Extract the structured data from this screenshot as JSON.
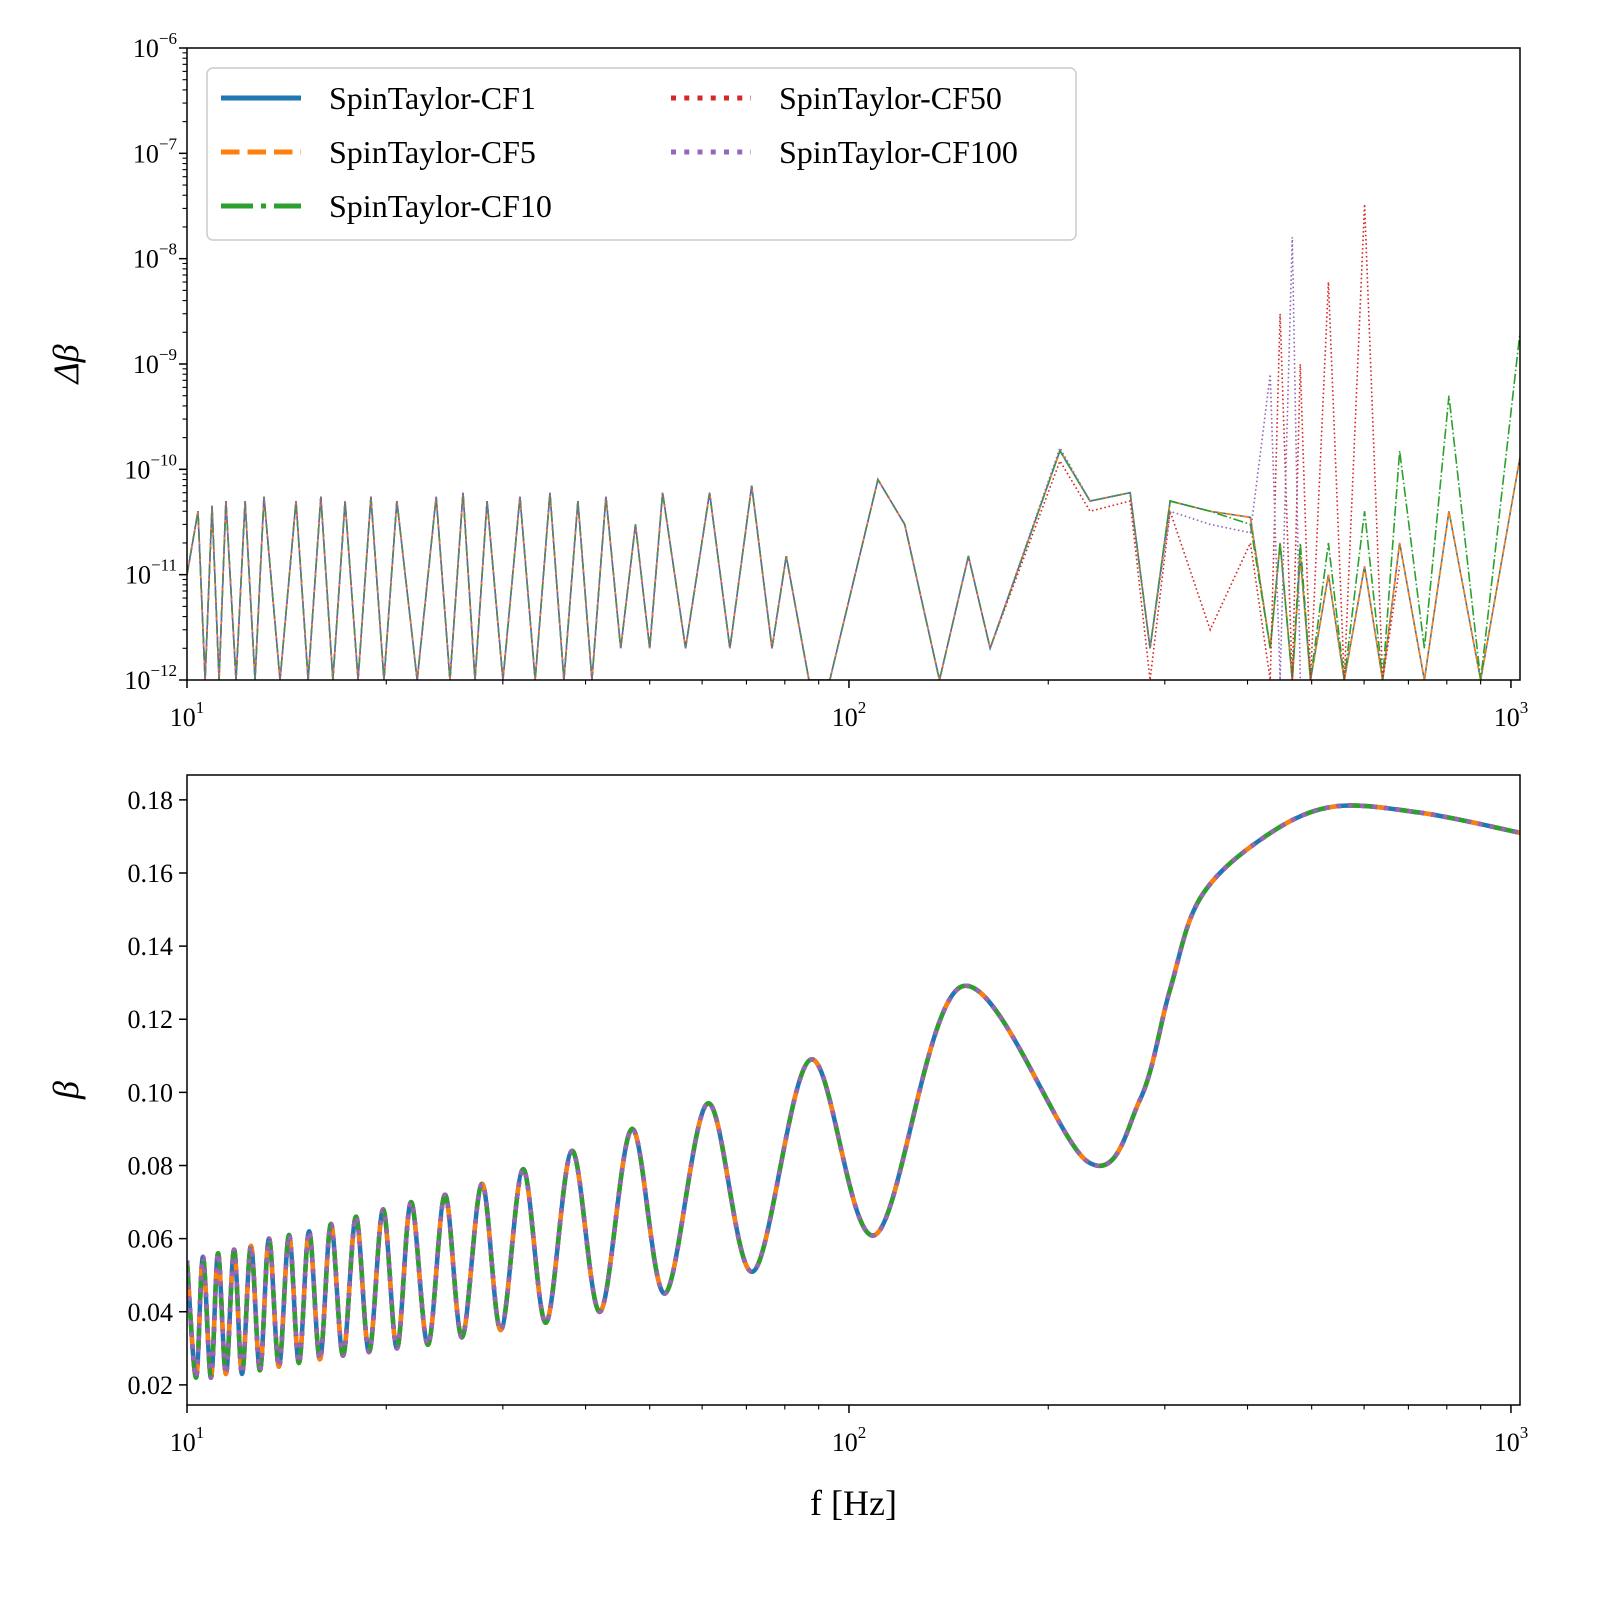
{
  "chart_data": [
    {
      "type": "line",
      "ylabel": "Δβ",
      "xscale": "log",
      "yscale": "log",
      "legend": "upper left",
      "legend_columns": 2,
      "xlim": [
        10,
        1032
      ],
      "ylim": [
        1e-12,
        1e-06
      ],
      "xticks": [
        {
          "value": 10,
          "label": "10",
          "exponent": "1"
        },
        {
          "value": 100,
          "label": "10",
          "exponent": "2"
        },
        {
          "value": 1000,
          "label": "10",
          "exponent": "3"
        }
      ],
      "xminorticks": [
        20,
        30,
        40,
        50,
        60,
        70,
        80,
        90,
        200,
        300,
        400,
        500,
        600,
        700,
        800,
        900
      ],
      "yticks": [
        {
          "value": 1e-12,
          "label": "10",
          "exponent": "−12"
        },
        {
          "value": 1e-11,
          "label": "10",
          "exponent": "−11"
        },
        {
          "value": 1e-10,
          "label": "10",
          "exponent": "−10"
        },
        {
          "value": 1e-09,
          "label": "10",
          "exponent": "−9"
        },
        {
          "value": 1e-08,
          "label": "10",
          "exponent": "−8"
        },
        {
          "value": 1e-07,
          "label": "10",
          "exponent": "−7"
        },
        {
          "value": 1e-06,
          "label": "10",
          "exponent": "−6"
        }
      ],
      "yminorticks": [
        2e-12,
        3e-12,
        4e-12,
        5e-12,
        6e-12,
        7e-12,
        8e-12,
        9e-12,
        2e-11,
        3e-11,
        4e-11,
        5e-11,
        6e-11,
        7e-11,
        8e-11,
        9e-11,
        2e-10,
        3e-10,
        4e-10,
        5e-10,
        6e-10,
        7e-10,
        8e-10,
        9e-10,
        2e-09,
        3e-09,
        4e-09,
        5e-09,
        6e-09,
        7e-09,
        8e-09,
        9e-09,
        2e-08,
        3e-08,
        4e-08,
        5e-08,
        6e-08,
        7e-08,
        8e-08,
        9e-08,
        2e-07,
        3e-07,
        4e-07,
        5e-07,
        6e-07,
        7e-07,
        8e-07,
        9e-07
      ],
      "x": [
        10.0,
        10.39,
        10.65,
        10.91,
        11.18,
        11.45,
        11.86,
        12.24,
        12.67,
        13.07,
        13.82,
        14.61,
        15.24,
        15.93,
        16.61,
        17.33,
        18.13,
        18.96,
        19.84,
        20.75,
        22.27,
        23.79,
        24.96,
        26.12,
        27.23,
        28.4,
        30.01,
        31.84,
        33.57,
        35.34,
        37.1,
        38.95,
        40.9,
        42.94,
        45.2,
        47.58,
        50.0,
        52.3,
        56.64,
        61.58,
        66.09,
        71.3,
        76.5,
        80.4,
        87.0,
        93.55,
        110.6,
        121.4,
        137.0,
        151.5,
        163.4,
        208.3,
        231.3,
        265.9,
        285,
        305.6,
        351.3,
        404.0,
        432.9,
        448,
        467.4,
        480.6,
        498,
        530,
        560,
        601,
        640,
        679,
        740,
        806,
        900,
        1032
      ],
      "series": [
        {
          "name": "SpinTaylor-CF1",
          "color": "#1f77b4",
          "style": "solid",
          "values": [
            1e-11,
            4e-11,
            1e-12,
            4.5e-11,
            1e-12,
            5e-11,
            1e-12,
            5e-11,
            1e-12,
            5.5e-11,
            1e-12,
            5e-11,
            1e-12,
            5.5e-11,
            1e-12,
            5e-11,
            1e-12,
            5.5e-11,
            1e-12,
            5e-11,
            1e-12,
            5.5e-11,
            1e-12,
            6e-11,
            1e-12,
            5e-11,
            1e-12,
            5.5e-11,
            1e-12,
            6e-11,
            1e-12,
            5e-11,
            1e-12,
            5.5e-11,
            2e-12,
            3e-11,
            2e-12,
            6e-11,
            2e-12,
            6e-11,
            2e-12,
            7e-11,
            2e-12,
            1.5e-11,
            1e-12,
            1e-12,
            8e-11,
            3e-11,
            1e-12,
            1.5e-11,
            2e-12,
            1.5e-10,
            5e-11,
            6e-11,
            2e-12,
            5e-11,
            4e-11,
            3.5e-11,
            2e-12,
            2e-11,
            1e-12,
            1.5e-11,
            1e-12,
            1e-11,
            1e-12,
            1.2e-11,
            1e-12,
            2e-11,
            1e-12,
            4e-11,
            1e-12,
            1.3e-10
          ]
        },
        {
          "name": "SpinTaylor-CF5",
          "color": "#ff7f0e",
          "style": "dashed",
          "values": [
            1e-11,
            4e-11,
            1e-12,
            4.5e-11,
            1e-12,
            5e-11,
            1e-12,
            5e-11,
            1e-12,
            5.5e-11,
            1e-12,
            5e-11,
            1e-12,
            5.5e-11,
            1e-12,
            5e-11,
            1e-12,
            5.5e-11,
            1e-12,
            5e-11,
            1e-12,
            5.5e-11,
            1e-12,
            6e-11,
            1e-12,
            5e-11,
            1e-12,
            5.5e-11,
            1e-12,
            6e-11,
            1e-12,
            5e-11,
            1e-12,
            5.5e-11,
            2e-12,
            3e-11,
            2e-12,
            6e-11,
            2e-12,
            6e-11,
            2e-12,
            7e-11,
            2e-12,
            1.5e-11,
            1e-12,
            1e-12,
            8e-11,
            3e-11,
            1e-12,
            1.5e-11,
            2e-12,
            1.5e-10,
            5e-11,
            6e-11,
            2e-12,
            5e-11,
            4e-11,
            3.5e-11,
            2e-12,
            2e-11,
            1e-12,
            1.5e-11,
            1e-12,
            1e-11,
            1e-12,
            1.2e-11,
            1e-12,
            2e-11,
            1e-12,
            4e-11,
            1e-12,
            1.3e-10
          ]
        },
        {
          "name": "SpinTaylor-CF10",
          "color": "#2ca02c",
          "style": "dashdot",
          "values": [
            1e-11,
            4e-11,
            1e-12,
            4.5e-11,
            1e-12,
            5e-11,
            1e-12,
            5e-11,
            1e-12,
            5.5e-11,
            1e-12,
            5e-11,
            1e-12,
            5.5e-11,
            1e-12,
            5e-11,
            1e-12,
            5.5e-11,
            1e-12,
            5e-11,
            1e-12,
            5.5e-11,
            1e-12,
            6e-11,
            1e-12,
            5e-11,
            1e-12,
            5.5e-11,
            1e-12,
            6e-11,
            1e-12,
            5e-11,
            1e-12,
            5.5e-11,
            2e-12,
            3e-11,
            2e-12,
            6e-11,
            2e-12,
            6e-11,
            2e-12,
            7e-11,
            2e-12,
            1.5e-11,
            1e-12,
            1e-12,
            8e-11,
            3e-11,
            1e-12,
            1.5e-11,
            2e-12,
            1.5e-10,
            5e-11,
            6e-11,
            2e-12,
            5e-11,
            4e-11,
            3e-11,
            2e-12,
            2e-11,
            1e-12,
            2e-11,
            1e-12,
            2e-11,
            1e-12,
            4e-11,
            1e-12,
            1.5e-10,
            2e-12,
            5e-10,
            1e-12,
            2e-09
          ]
        },
        {
          "name": "SpinTaylor-CF50",
          "color": "#d62728",
          "style": "dotted",
          "values": [
            1e-11,
            4e-11,
            1e-12,
            4.5e-11,
            1e-12,
            5e-11,
            1e-12,
            5e-11,
            1e-12,
            5.5e-11,
            1e-12,
            5e-11,
            1e-12,
            5.5e-11,
            1e-12,
            5e-11,
            1e-12,
            5.5e-11,
            1e-12,
            5e-11,
            1e-12,
            5.5e-11,
            1e-12,
            6e-11,
            1e-12,
            5e-11,
            1e-12,
            5.5e-11,
            1e-12,
            6e-11,
            1e-12,
            5e-11,
            1e-12,
            5.5e-11,
            2e-12,
            3e-11,
            2e-12,
            6e-11,
            2e-12,
            6e-11,
            2e-12,
            7e-11,
            2e-12,
            1.5e-11,
            1e-12,
            1e-12,
            8e-11,
            3e-11,
            1e-12,
            1.5e-11,
            2e-12,
            1.2e-10,
            4e-11,
            5e-11,
            1e-12,
            4e-11,
            3e-12,
            2e-11,
            1e-12,
            3e-09,
            1e-12,
            1e-09,
            1e-12,
            6e-09,
            1e-12,
            3.3e-08,
            1e-12,
            1.2e-11,
            null,
            null,
            null,
            null
          ]
        },
        {
          "name": "SpinTaylor-CF100",
          "color": "#9467bd",
          "style": "dotted",
          "values": [
            1e-11,
            4e-11,
            1e-12,
            4.5e-11,
            1e-12,
            5e-11,
            1e-12,
            5e-11,
            1e-12,
            5.5e-11,
            1e-12,
            5e-11,
            1e-12,
            5.5e-11,
            1e-12,
            5e-11,
            1e-12,
            5.5e-11,
            1e-12,
            5e-11,
            1e-12,
            5.5e-11,
            1e-12,
            6e-11,
            1e-12,
            5e-11,
            1e-12,
            5.5e-11,
            1e-12,
            6e-11,
            1e-12,
            5e-11,
            1e-12,
            5.5e-11,
            2e-12,
            3e-11,
            2e-12,
            6e-11,
            2e-12,
            6e-11,
            2e-12,
            7e-11,
            2e-12,
            1.5e-11,
            1e-12,
            1e-12,
            8e-11,
            3e-11,
            1e-12,
            1.5e-11,
            2e-12,
            1.6e-10,
            5e-11,
            6e-11,
            2e-12,
            4e-11,
            3e-11,
            2.5e-11,
            8e-10,
            1e-12,
            1.6e-08,
            1e-12,
            null,
            null,
            null,
            null,
            null,
            null,
            null,
            null,
            null,
            null
          ]
        }
      ]
    },
    {
      "type": "line",
      "xlabel": "f [Hz]",
      "ylabel": "β",
      "xscale": "log",
      "yscale": "linear",
      "xlim": [
        10,
        1032
      ],
      "ylim": [
        0.0145,
        0.1868
      ],
      "xticks": [
        {
          "value": 10,
          "label": "10",
          "exponent": "1"
        },
        {
          "value": 100,
          "label": "10",
          "exponent": "2"
        },
        {
          "value": 1000,
          "label": "10",
          "exponent": "3"
        }
      ],
      "xminorticks": [
        20,
        30,
        40,
        50,
        60,
        70,
        80,
        90,
        200,
        300,
        400,
        500,
        600,
        700,
        800,
        900
      ],
      "yticks": [
        0.02,
        0.04,
        0.06,
        0.08,
        {
          "value": 0.1,
          "label": "0.10"
        },
        0.12,
        0.14,
        0.16,
        0.18
      ],
      "x": [
        10.0,
        10.32,
        10.57,
        10.87,
        11.14,
        11.45,
        11.78,
        12.11,
        12.49,
        12.89,
        13.3,
        13.77,
        14.26,
        14.76,
        15.29,
        15.88,
        16.5,
        17.21,
        18.0,
        18.84,
        19.78,
        20.76,
        21.8,
        23.12,
        24.53,
        26.03,
        27.9,
        29.8,
        32.19,
        34.86,
        38.16,
        42.07,
        47.01,
        52.74,
        61.24,
        71.61,
        87.61,
        109.5,
        148.2,
        229.6,
        275.2,
        305.4,
        339.0,
        417.7,
        533.0,
        728.8,
        1032
      ],
      "series": [
        {
          "color": "#1f77b4",
          "style": "solid",
          "values": [
            0.054,
            0.022,
            0.055,
            0.022,
            0.056,
            0.023,
            0.057,
            0.023,
            0.058,
            0.024,
            0.06,
            0.025,
            0.061,
            0.026,
            0.062,
            0.027,
            0.064,
            0.028,
            0.066,
            0.029,
            0.068,
            0.03,
            0.07,
            0.031,
            0.072,
            0.033,
            0.075,
            0.035,
            0.079,
            0.037,
            0.084,
            0.04,
            0.09,
            0.045,
            0.097,
            0.051,
            0.109,
            0.061,
            0.129,
            0.081,
            0.098,
            0.128,
            0.153,
            0.169,
            0.178,
            0.1765,
            0.171
          ]
        },
        {
          "color": "#ff7f0e",
          "style": "dashed",
          "values": [
            0.054,
            0.022,
            0.055,
            0.022,
            0.056,
            0.023,
            0.057,
            0.023,
            0.058,
            0.024,
            0.06,
            0.025,
            0.061,
            0.026,
            0.062,
            0.027,
            0.064,
            0.028,
            0.066,
            0.029,
            0.068,
            0.03,
            0.07,
            0.031,
            0.072,
            0.033,
            0.075,
            0.035,
            0.079,
            0.037,
            0.084,
            0.04,
            0.09,
            0.045,
            0.097,
            0.051,
            0.109,
            0.061,
            0.129,
            0.081,
            0.098,
            0.128,
            0.153,
            0.169,
            0.178,
            0.1765,
            0.171
          ]
        },
        {
          "color": "#2ca02c",
          "style": "dashdot",
          "values": [
            0.054,
            0.022,
            0.055,
            0.022,
            0.056,
            0.023,
            0.057,
            0.023,
            0.058,
            0.024,
            0.06,
            0.025,
            0.061,
            0.026,
            0.062,
            0.027,
            0.064,
            0.028,
            0.066,
            0.029,
            0.068,
            0.03,
            0.07,
            0.031,
            0.072,
            0.033,
            0.075,
            0.035,
            0.079,
            0.037,
            0.084,
            0.04,
            0.09,
            0.045,
            0.097,
            0.051,
            0.109,
            0.061,
            0.129,
            0.081,
            0.098,
            0.128,
            0.153,
            0.169,
            0.178,
            0.1765,
            0.171
          ]
        },
        {
          "color": "#d62728",
          "style": "dotted",
          "values": [
            0.054,
            0.022,
            0.055,
            0.022,
            0.056,
            0.023,
            0.057,
            0.023,
            0.058,
            0.024,
            0.06,
            0.025,
            0.061,
            0.026,
            0.062,
            0.027,
            0.064,
            0.028,
            0.066,
            0.029,
            0.068,
            0.03,
            0.07,
            0.031,
            0.072,
            0.033,
            0.075,
            0.035,
            0.079,
            0.037,
            0.084,
            0.04,
            0.09,
            0.045,
            0.097,
            0.051,
            0.109,
            0.061,
            0.129,
            0.081,
            0.098,
            0.128,
            0.153,
            0.169,
            0.178,
            0.1765,
            0.171
          ]
        },
        {
          "color": "#9467bd",
          "style": "dotted",
          "values": [
            0.054,
            0.022,
            0.055,
            0.022,
            0.056,
            0.023,
            0.057,
            0.023,
            0.058,
            0.024,
            0.06,
            0.025,
            0.061,
            0.026,
            0.062,
            0.027,
            0.064,
            0.028,
            0.066,
            0.029,
            0.068,
            0.03,
            0.07,
            0.031,
            0.072,
            0.033,
            0.075,
            0.035,
            0.079,
            0.037,
            0.084,
            0.04,
            0.09,
            0.045,
            0.097,
            0.051,
            0.109,
            0.061,
            0.129,
            0.081,
            0.098,
            0.128,
            0.153,
            0.169,
            0.178,
            0.1765,
            0.171
          ]
        }
      ]
    }
  ]
}
